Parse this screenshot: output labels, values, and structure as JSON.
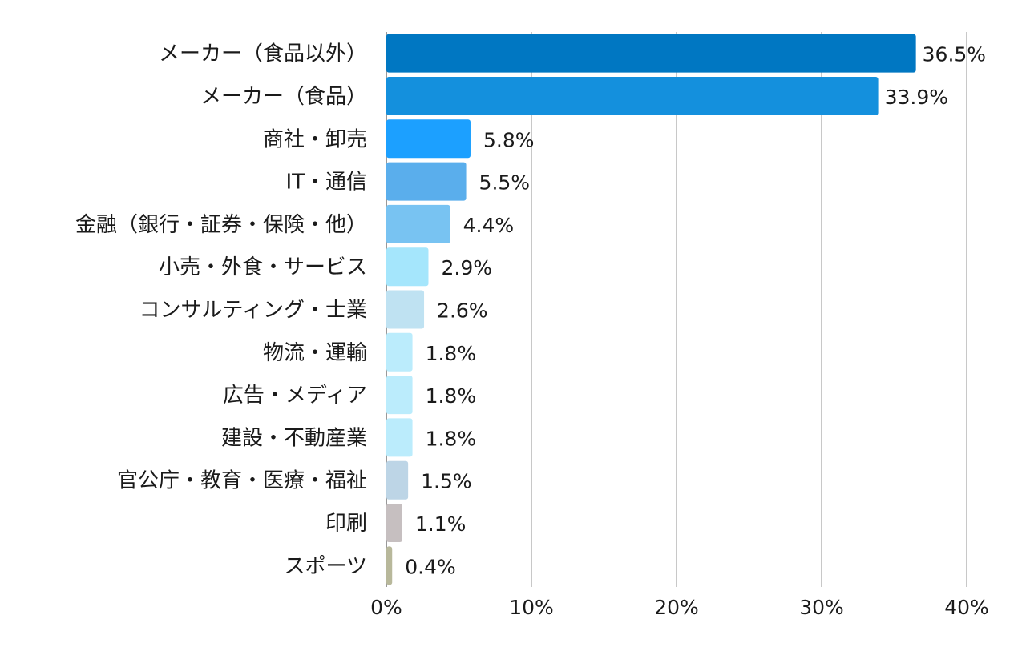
{
  "chart_data": {
    "type": "bar",
    "orientation": "horizontal",
    "title": "",
    "xlabel": "",
    "ylabel": "",
    "xlim": [
      0,
      40
    ],
    "grid": true,
    "x_ticks": [
      "0%",
      "10%",
      "20%",
      "30%",
      "40%"
    ],
    "x_tick_values": [
      0,
      10,
      20,
      30,
      40
    ],
    "categories": [
      "メーカー（食品以外）",
      "メーカー（食品）",
      "商社・卸売",
      "IT・通信",
      "金融（銀行・証券・保険・他）",
      "小売・外食・サービス",
      "コンサルティング・士業",
      "物流・運輸",
      "広告・メディア",
      "建設・不動産業",
      "官公庁・教育・医療・福祉",
      "印刷",
      "スポーツ"
    ],
    "values": [
      36.5,
      33.9,
      5.8,
      5.5,
      4.4,
      2.9,
      2.6,
      1.8,
      1.8,
      1.8,
      1.5,
      1.1,
      0.4
    ],
    "labels": [
      "36.5%",
      "33.9%",
      "5.8%",
      "5.5%",
      "4.4%",
      "2.9%",
      "2.6%",
      "1.8%",
      "1.8%",
      "1.8%",
      "1.5%",
      "1.1%",
      "0.4%"
    ],
    "colors": [
      "#0077c2",
      "#1490dd",
      "#1ca0ff",
      "#5aaeec",
      "#78c3f2",
      "#a5e6fc",
      "#bfe2f2",
      "#bbecfc",
      "#bbecfc",
      "#bbecfc",
      "#bdd5e6",
      "#c6bfc0",
      "#b8b89b"
    ]
  }
}
